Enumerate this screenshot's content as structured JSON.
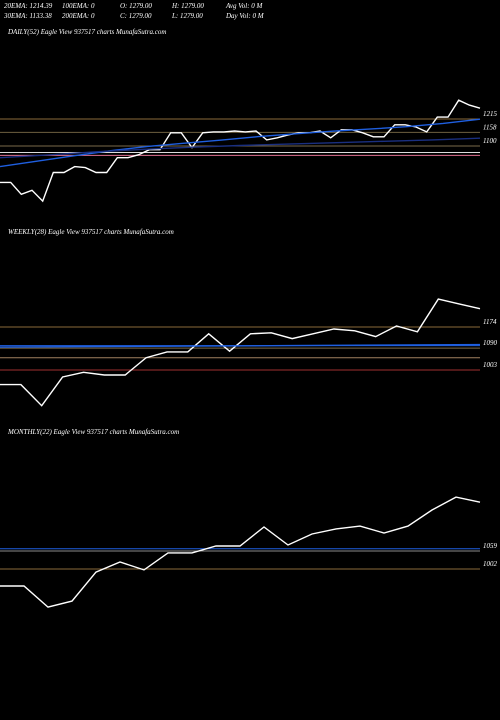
{
  "header": {
    "rows": [
      [
        "20EMA: 1214.39",
        "100EMA: 0",
        "O: 1279.00",
        "H: 1279.00",
        "Avg Vol: 0  M"
      ],
      [
        "30EMA: 1133.38",
        "200EMA: 0",
        "C: 1279.00",
        "L: 1279.00",
        "Day Vol: 0  M"
      ]
    ]
  },
  "chart_data": [
    {
      "type": "line",
      "title": "DAILY(52) Eagle  View  937517 charts MunafaSutra.com",
      "ylim": [
        806,
        1594
      ],
      "yticks": [
        1215,
        1158,
        1100
      ],
      "tick_colors": [
        "#8a6a3a",
        "#6e6040",
        "#7a6a4a"
      ],
      "lines": [
        {
          "value": 1060,
          "color": "#e07090"
        },
        {
          "value": 1072,
          "color": "#dddddd"
        }
      ],
      "series": [
        {
          "color": "#ffffff",
          "values": [
            945,
            945,
            894,
            911,
            865,
            987,
            987,
            1012,
            1008,
            987,
            987,
            1050,
            1050,
            1063,
            1084,
            1084,
            1156,
            1156,
            1093,
            1156,
            1160,
            1160,
            1164,
            1160,
            1164,
            1126,
            1135,
            1147,
            1156,
            1156,
            1164,
            1135,
            1169,
            1169,
            1156,
            1139,
            1139,
            1190,
            1190,
            1181,
            1160,
            1223,
            1223,
            1295,
            1274,
            1261
          ]
        },
        {
          "color": "#1f5fe0",
          "values": [
            1012,
            1035,
            1058,
            1080,
            1098,
            1112,
            1125,
            1140,
            1152,
            1163,
            1172,
            1182,
            1196,
            1214
          ]
        },
        {
          "color": "#1a2f80",
          "values": [
            1050,
            1062,
            1075,
            1086,
            1095,
            1102,
            1108,
            1114,
            1120,
            1126,
            1133
          ]
        }
      ]
    },
    {
      "type": "line",
      "title": "WEEKLY(28) Eagle  View  937517 charts MunafaSutra.com",
      "ylim": [
        824,
        1560
      ],
      "yticks": [
        1174,
        1090,
        1003
      ],
      "tick_colors": [
        "#8a6a3a",
        "#7a6a4a",
        "#a03030"
      ],
      "lines": [
        {
          "value": 1100,
          "color": "#1f5fe0"
        },
        {
          "value": 1052,
          "color": "#a08060"
        }
      ],
      "series": [
        {
          "color": "#ffffff",
          "values": [
            945,
            945,
            861,
            975,
            994,
            983,
            983,
            1052,
            1075,
            1075,
            1147,
            1078,
            1147,
            1151,
            1128,
            1147,
            1166,
            1159,
            1136,
            1178,
            1155,
            1285,
            1266,
            1247
          ]
        },
        {
          "color": "#1f5fe0",
          "values": [
            1094,
            1096,
            1098,
            1100,
            1102,
            1104
          ]
        }
      ]
    },
    {
      "type": "line",
      "title": "MONTHLY(22) Eagle  View  937517 charts MunafaSutra.com",
      "ylim": [
        840,
        1443
      ],
      "yticks": [
        1059,
        1002
      ],
      "tick_colors": [
        "#8a8a8a",
        "#8a6a3a"
      ],
      "lines": [
        {
          "value": 1066,
          "color": "#1f5fe0"
        }
      ],
      "series": [
        {
          "color": "#ffffff",
          "values": [
            948,
            948,
            881,
            900,
            992,
            1024,
            999,
            1053,
            1053,
            1075,
            1075,
            1135,
            1078,
            1113,
            1129,
            1138,
            1116,
            1138,
            1189,
            1230,
            1214
          ]
        }
      ]
    }
  ]
}
